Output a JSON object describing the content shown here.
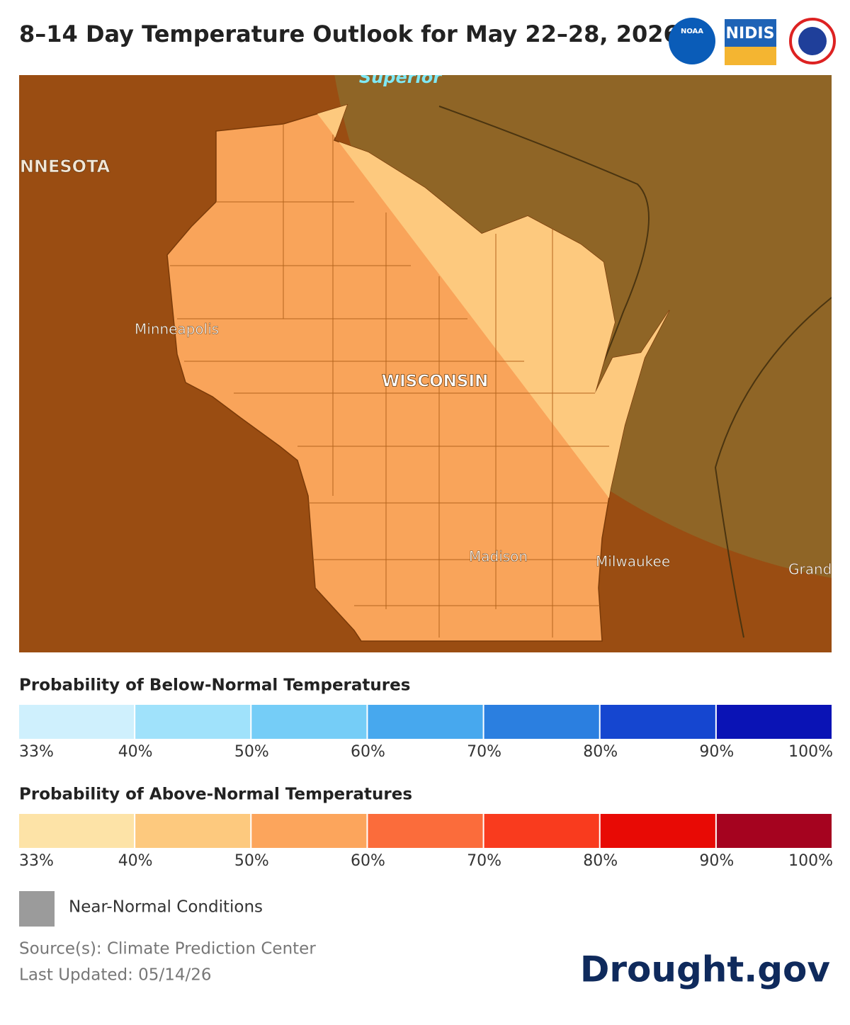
{
  "title": "8–14 Day Temperature Outlook for May 22–28, 2026",
  "logos": [
    "NOAA",
    "NIDIS"
  ],
  "map": {
    "labels": {
      "lake": "Superior",
      "state_west": "MINNESOTA",
      "state": "WISCONSIN",
      "cities": [
        "Minneapolis",
        "Madison",
        "Milwaukee",
        "Grand"
      ]
    }
  },
  "legends": [
    {
      "title": "Probability of Below-Normal Temperatures",
      "colors": [
        "#cff0fd",
        "#a0e2fb",
        "#75cdf7",
        "#47a8ee",
        "#2b7fe0",
        "#1546d0",
        "#0a13b5"
      ],
      "ticks": [
        "33%",
        "40%",
        "50%",
        "60%",
        "70%",
        "80%",
        "90%",
        "100%"
      ]
    },
    {
      "title": "Probability of Above-Normal Temperatures",
      "colors": [
        "#fde3a7",
        "#fdc97e",
        "#fca55c",
        "#fb6c3b",
        "#f93b1e",
        "#e80a05",
        "#a5031f"
      ],
      "ticks": [
        "33%",
        "40%",
        "50%",
        "60%",
        "70%",
        "80%",
        "90%",
        "100%"
      ]
    }
  ],
  "near_normal": {
    "label": "Near-Normal Conditions",
    "color": "#9b9b9b"
  },
  "source": "Source(s): Climate Prediction Center",
  "updated": "Last Updated: 05/14/26",
  "brand": "Drought.gov"
}
